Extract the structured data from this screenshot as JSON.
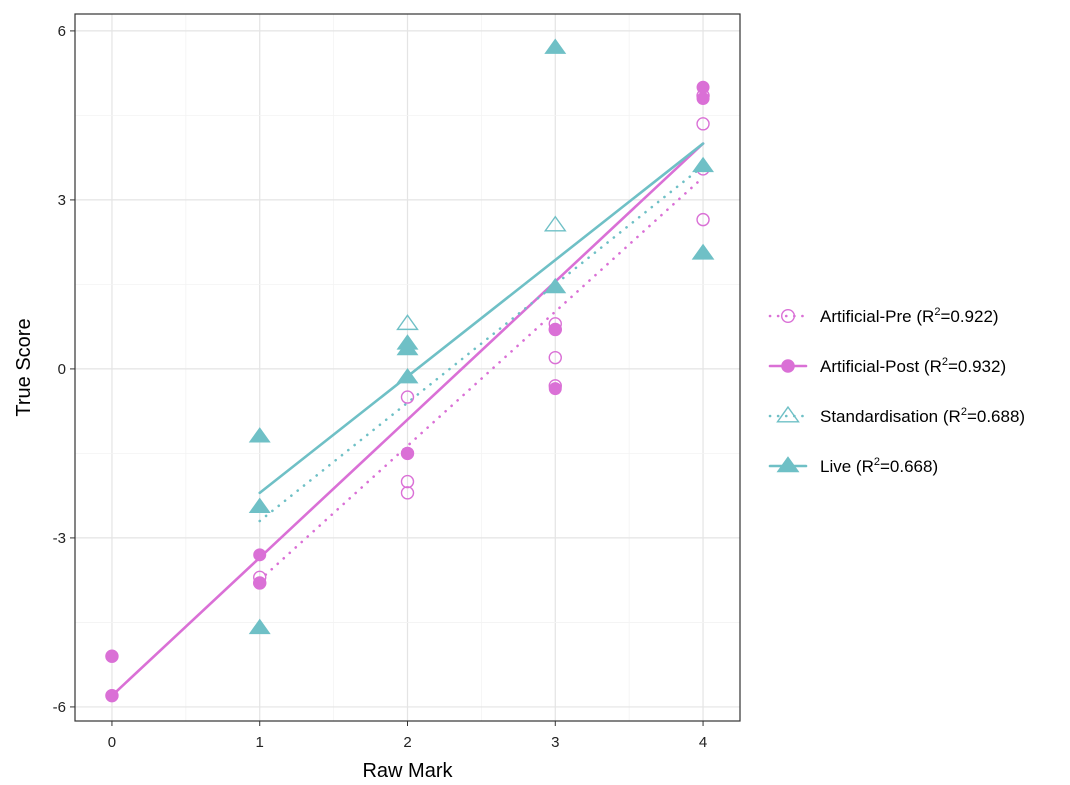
{
  "chart_data": {
    "type": "scatter",
    "xlabel": "Raw Mark",
    "ylabel": "True Score",
    "xlim": [
      -0.25,
      4.25
    ],
    "ylim": [
      -6.25,
      6.3
    ],
    "xticks": [
      "0",
      "1",
      "2",
      "3",
      "4"
    ],
    "yticks": [
      "-6",
      "-3",
      "0",
      "3",
      "6"
    ],
    "grid": true,
    "legend_position": "right",
    "series": [
      {
        "key": "artificial_pre",
        "name": "Artificial-Pre",
        "r2_prefix": "(R",
        "r2_sup": "2",
        "r2_suffix": "=0.922)",
        "color": "#DA70D6",
        "marker": "circle-open",
        "line": "dotted",
        "points": [
          [
            0,
            -5.1
          ],
          [
            0,
            -5.8
          ],
          [
            1,
            -3.7
          ],
          [
            1,
            -3.8
          ],
          [
            2,
            -0.5
          ],
          [
            2,
            -2.0
          ],
          [
            2,
            -2.2
          ],
          [
            2,
            -1.5
          ],
          [
            3,
            0.8
          ],
          [
            3,
            0.7
          ],
          [
            3,
            0.2
          ],
          [
            3,
            -0.3
          ],
          [
            4,
            4.35
          ],
          [
            4,
            3.55
          ],
          [
            4,
            2.65
          ],
          [
            4,
            4.85
          ]
        ],
        "fit": [
          [
            1,
            -3.75
          ],
          [
            4,
            3.4
          ]
        ]
      },
      {
        "key": "artificial_post",
        "name": "Artificial-Post",
        "r2_prefix": "(R",
        "r2_sup": "2",
        "r2_suffix": "=0.932)",
        "color": "#DA70D6",
        "marker": "circle-filled",
        "line": "solid",
        "points": [
          [
            0,
            -5.1
          ],
          [
            0,
            -5.8
          ],
          [
            1,
            -3.3
          ],
          [
            1,
            -3.8
          ],
          [
            2,
            -1.5
          ],
          [
            3,
            0.7
          ],
          [
            3,
            -0.35
          ],
          [
            4,
            5.0
          ],
          [
            4,
            4.8
          ]
        ],
        "fit": [
          [
            0,
            -5.8
          ],
          [
            4,
            4.0
          ]
        ]
      },
      {
        "key": "standardisation",
        "name": "Standardisation",
        "r2_prefix": "(R",
        "r2_sup": "2",
        "r2_suffix": "=0.688)",
        "color": "#6FC0C6",
        "marker": "triangle-open",
        "line": "dotted",
        "points": [
          [
            2,
            0.8
          ],
          [
            3,
            2.55
          ],
          [
            4,
            2.05
          ]
        ],
        "fit": [
          [
            1,
            -2.7
          ],
          [
            4,
            3.6
          ]
        ]
      },
      {
        "key": "live",
        "name": "Live",
        "r2_prefix": "(R",
        "r2_sup": "2",
        "r2_suffix": "=0.668)",
        "color": "#6FC0C6",
        "marker": "triangle-filled",
        "line": "solid",
        "points": [
          [
            1,
            -1.2
          ],
          [
            1,
            -2.45
          ],
          [
            1,
            -4.6
          ],
          [
            2,
            0.45
          ],
          [
            2,
            0.35
          ],
          [
            2,
            -0.15
          ],
          [
            3,
            5.7
          ],
          [
            3,
            1.45
          ],
          [
            4,
            3.6
          ],
          [
            4,
            2.05
          ]
        ],
        "fit": [
          [
            1,
            -2.2
          ],
          [
            4,
            4.0
          ]
        ]
      }
    ]
  }
}
